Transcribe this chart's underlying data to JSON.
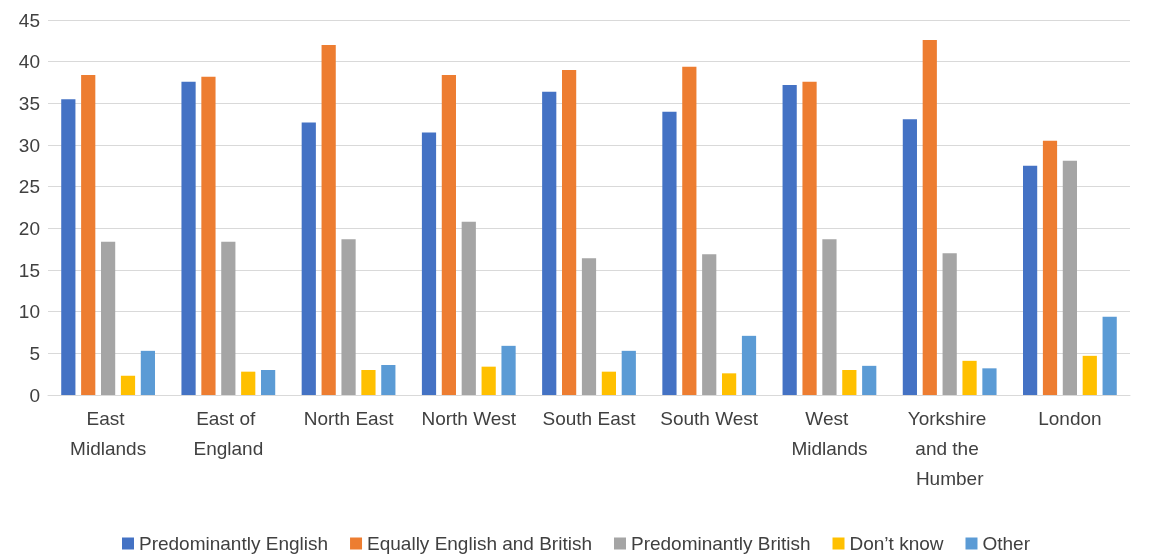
{
  "chart_data": {
    "type": "bar",
    "categories": [
      "East Midlands",
      "East of England",
      "North East",
      "North West",
      "South East",
      "South West",
      "West Midlands",
      "Yorkshire and the Humber",
      "London"
    ],
    "series": [
      {
        "name": "Predominantly English",
        "color": "#4472c4",
        "values": [
          35.5,
          37.6,
          32.7,
          31.5,
          36.4,
          34.0,
          37.2,
          33.1,
          27.5
        ]
      },
      {
        "name": "Equally English and British",
        "color": "#ed7d31",
        "values": [
          38.4,
          38.2,
          42.0,
          38.4,
          39.0,
          39.4,
          37.6,
          42.6,
          30.5
        ]
      },
      {
        "name": "Predominantly British",
        "color": "#a5a5a5",
        "values": [
          18.4,
          18.4,
          18.7,
          20.8,
          16.4,
          16.9,
          18.7,
          17.0,
          28.1
        ]
      },
      {
        "name": "Don’t know",
        "color": "#ffc000",
        "values": [
          2.3,
          2.8,
          3.0,
          3.4,
          2.8,
          2.6,
          3.0,
          4.1,
          4.7
        ]
      },
      {
        "name": "Other",
        "color": "#5b9bd5",
        "values": [
          5.3,
          3.0,
          3.6,
          5.9,
          5.3,
          7.1,
          3.5,
          3.2,
          9.4
        ]
      }
    ],
    "ylim": [
      0,
      45
    ],
    "yticks": [
      0,
      5,
      10,
      15,
      20,
      25,
      30,
      35,
      40,
      45
    ],
    "grid": "y",
    "legend": "bottom"
  }
}
